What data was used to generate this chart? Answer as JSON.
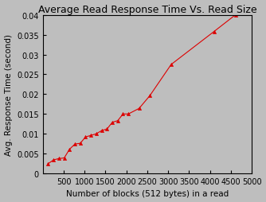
{
  "title": "Average Read Response Time Vs. Read Size",
  "xlabel": "Number of blocks (512 bytes) in a read",
  "ylabel": "Avg. Response Time (second)",
  "xlim": [
    0,
    5000
  ],
  "ylim": [
    0,
    0.04
  ],
  "xticks": [
    500,
    1000,
    1500,
    2000,
    2500,
    3000,
    3500,
    4000,
    4500,
    5000
  ],
  "xtick_labels": [
    "500",
    "1000",
    "1500",
    "2000",
    "2500",
    "3000",
    "3500",
    "4000",
    "4500",
    "5000"
  ],
  "yticks": [
    0,
    0.005,
    0.01,
    0.015,
    0.02,
    0.025,
    0.03,
    0.035,
    0.04
  ],
  "ytick_labels": [
    "0",
    "0.005",
    "0.01",
    "0.015",
    "0.02",
    "0.025",
    "0.03",
    "0.035",
    "0.04"
  ],
  "x_data": [
    128,
    256,
    384,
    512,
    640,
    768,
    896,
    1024,
    1152,
    1280,
    1408,
    1536,
    1664,
    1792,
    1920,
    2048,
    2304,
    2560,
    3072,
    4096,
    4608
  ],
  "y_data": [
    0.00245,
    0.0034,
    0.00375,
    0.0039,
    0.0061,
    0.0074,
    0.0076,
    0.0092,
    0.0096,
    0.01,
    0.0108,
    0.0112,
    0.0129,
    0.0133,
    0.015,
    0.015,
    0.0164,
    0.0196,
    0.0275,
    0.0358,
    0.04
  ],
  "line_color": "#dd0000",
  "marker": "^",
  "marker_size": 3,
  "bg_color": "#bebebe",
  "title_fontsize": 9,
  "label_fontsize": 7.5,
  "tick_fontsize": 7
}
